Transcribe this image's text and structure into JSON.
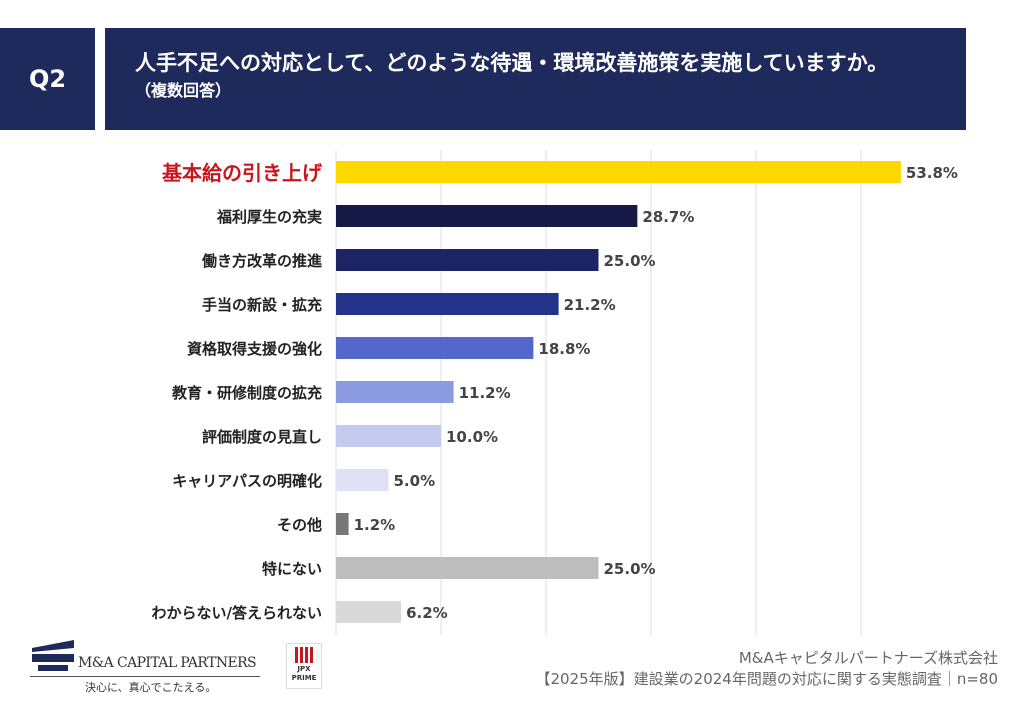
{
  "header": {
    "q_label": "Q2",
    "title": "人手不足への対応として、どのような待遇・環境改善施策を実施していますか。",
    "subtitle": "（複数回答）",
    "color": "#1f2a5c"
  },
  "chart_data": {
    "type": "bar",
    "orientation": "horizontal",
    "xlim": [
      0,
      60
    ],
    "grid": true,
    "categories": [
      "基本給の引き上げ",
      "福利厚生の充実",
      "働き方改革の推進",
      "手当の新設・拡充",
      "資格取得支援の強化",
      "教育・研修制度の拡充",
      "評価制度の見直し",
      "キャリアパスの明確化",
      "その他",
      "特にない",
      "わからない/答えられない"
    ],
    "values": [
      53.8,
      28.7,
      25.0,
      21.2,
      18.8,
      11.2,
      10.0,
      5.0,
      1.2,
      25.0,
      6.2
    ],
    "labels": [
      "53.8%",
      "28.7%",
      "25.0%",
      "21.2%",
      "18.8%",
      "11.2%",
      "10.0%",
      "5.0%",
      "1.2%",
      "25.0%",
      "6.2%"
    ],
    "colors": [
      "#ffd800",
      "#141a45",
      "#1d2466",
      "#24338a",
      "#5566cc",
      "#8c9be0",
      "#c5cbee",
      "#dfe2f5",
      "#777777",
      "#bdbdbd",
      "#d9d9d9"
    ],
    "highlight_color": "#c8161d"
  },
  "footer": {
    "logo_text": "M&A CAPITAL PARTNERS",
    "tagline": "決心に、真心でこたえる。",
    "jpx": "JPX PRIME",
    "company": "M&Aキャピタルパートナーズ株式会社",
    "survey": "【2025年版】建設業の2024年問題の対応に関する実態調査｜n=80"
  }
}
